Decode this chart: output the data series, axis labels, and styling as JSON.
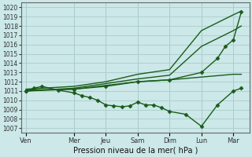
{
  "xlabel": "Pression niveau de la mer( hPa )",
  "background_color": "#cce8e8",
  "grid_color": "#aacccc",
  "line_color": "#1a5c1a",
  "ylim": [
    1006.5,
    1020.5
  ],
  "yticks": [
    1007,
    1008,
    1009,
    1010,
    1011,
    1012,
    1013,
    1014,
    1015,
    1016,
    1017,
    1018,
    1019,
    1020
  ],
  "x_labels": [
    "Ven",
    "Mer",
    "Jeu",
    "Sam",
    "Dim",
    "Lun",
    "Mar"
  ],
  "x_positions": [
    0,
    3,
    5,
    7,
    9,
    11,
    13
  ],
  "xlim": [
    -0.3,
    14.0
  ],
  "series": [
    {
      "x": [
        0,
        0.5,
        1,
        2,
        3,
        3.5,
        4,
        4.5,
        5,
        5.5,
        6,
        6.5,
        7,
        7.5,
        8,
        8.5,
        9,
        10,
        11,
        12,
        13,
        13.5
      ],
      "y": [
        1011.0,
        1011.3,
        1011.5,
        1011.1,
        1010.8,
        1010.5,
        1010.3,
        1010.0,
        1009.5,
        1009.4,
        1009.3,
        1009.4,
        1009.8,
        1009.5,
        1009.5,
        1009.2,
        1008.8,
        1008.5,
        1007.2,
        1009.5,
        1011.0,
        1011.3
      ],
      "marker": "D",
      "markersize": 2.5,
      "linewidth": 1.0
    },
    {
      "x": [
        0,
        3,
        5,
        7,
        9,
        11,
        13,
        13.5
      ],
      "y": [
        1011.2,
        1011.5,
        1012.0,
        1012.8,
        1013.3,
        1017.5,
        1019.2,
        1019.6
      ],
      "marker": null,
      "markersize": 0,
      "linewidth": 1.0
    },
    {
      "x": [
        0,
        3,
        5,
        7,
        9,
        11,
        13,
        13.5
      ],
      "y": [
        1011.0,
        1011.3,
        1011.8,
        1012.3,
        1012.7,
        1015.8,
        1017.5,
        1018.0
      ],
      "marker": null,
      "markersize": 0,
      "linewidth": 1.0
    },
    {
      "x": [
        0,
        3,
        5,
        7,
        9,
        11,
        12,
        12.5,
        13,
        13.5
      ],
      "y": [
        1011.0,
        1011.2,
        1011.5,
        1012.0,
        1012.2,
        1013.0,
        1014.5,
        1015.8,
        1016.5,
        1019.5
      ],
      "marker": "D",
      "markersize": 2.5,
      "linewidth": 1.0
    },
    {
      "x": [
        0,
        3,
        5,
        7,
        9,
        11,
        13,
        13.5
      ],
      "y": [
        1011.1,
        1011.2,
        1011.6,
        1012.0,
        1012.2,
        1012.5,
        1012.8,
        1012.8
      ],
      "marker": null,
      "markersize": 0,
      "linewidth": 1.0
    }
  ]
}
